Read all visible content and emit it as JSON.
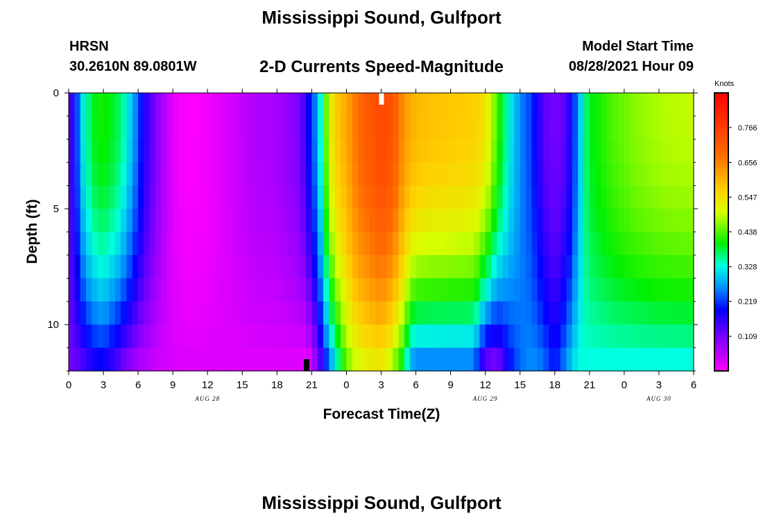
{
  "header": {
    "title_top": "Mississippi Sound, Gulfport",
    "station_id": "HRSN",
    "station_coords": "30.2610N  89.0801W",
    "model_start_label": "Model Start Time",
    "model_start_value": "08/28/2021 Hour 09",
    "title_bottom": "Mississippi Sound, Gulfport"
  },
  "chart_data": {
    "type": "heatmap",
    "title": "2-D Currents Speed-Magnitude",
    "xlabel": "Forecast Time(Z)",
    "ylabel": "Depth (ft)",
    "colorbar_label": "Knots",
    "colorbar_ticks": [
      "0.109",
      "0.219",
      "0.328",
      "0.438",
      "0.547",
      "0.656",
      "0.766"
    ],
    "colorbar_range": [
      0.0,
      0.875
    ],
    "x_tick_labels": [
      "0",
      "3",
      "6",
      "9",
      "12",
      "15",
      "18",
      "21",
      "0",
      "3",
      "6",
      "9",
      "12",
      "15",
      "18",
      "21",
      "0",
      "3",
      "6"
    ],
    "x_hours_range": [
      0,
      54
    ],
    "date_labels": [
      {
        "text": "AUG 28",
        "hour": 12
      },
      {
        "text": "AUG 29",
        "hour": 36
      },
      {
        "text": "AUG 30",
        "hour": 51
      }
    ],
    "y_tick_labels": [
      "0",
      "5",
      "10"
    ],
    "y_tick_values": [
      0,
      5,
      10
    ],
    "ylim": [
      0,
      12
    ],
    "y_inverted": true,
    "grid": false,
    "markers": [
      {
        "type": "white-bar",
        "hour": 27
      },
      {
        "type": "black-bar",
        "hour": 20.5
      }
    ],
    "time_profile_surface": [
      [
        0,
        0.15
      ],
      [
        0.5,
        0.2
      ],
      [
        1,
        0.33
      ],
      [
        1.5,
        0.4
      ],
      [
        2.5,
        0.47
      ],
      [
        3.5,
        0.46
      ],
      [
        4.5,
        0.42
      ],
      [
        5.5,
        0.33
      ],
      [
        6.5,
        0.2
      ],
      [
        7.5,
        0.12
      ],
      [
        8.5,
        0.05
      ],
      [
        9.5,
        0.01
      ],
      [
        10.5,
        0.0
      ],
      [
        12,
        0.01
      ],
      [
        14,
        0.04
      ],
      [
        16,
        0.07
      ],
      [
        18,
        0.08
      ],
      [
        20,
        0.12
      ],
      [
        21,
        0.25
      ],
      [
        21.5,
        0.32
      ],
      [
        22,
        0.45
      ],
      [
        22.5,
        0.58
      ],
      [
        23,
        0.65
      ],
      [
        24,
        0.7
      ],
      [
        25,
        0.78
      ],
      [
        26,
        0.82
      ],
      [
        27,
        0.85
      ],
      [
        28,
        0.83
      ],
      [
        29,
        0.72
      ],
      [
        30,
        0.68
      ],
      [
        31,
        0.67
      ],
      [
        33,
        0.66
      ],
      [
        35,
        0.65
      ],
      [
        36,
        0.62
      ],
      [
        37,
        0.5
      ],
      [
        38,
        0.38
      ],
      [
        39,
        0.3
      ],
      [
        40,
        0.25
      ],
      [
        41,
        0.15
      ],
      [
        42,
        0.12
      ],
      [
        43,
        0.15
      ],
      [
        44,
        0.3
      ],
      [
        44.5,
        0.4
      ],
      [
        45,
        0.45
      ],
      [
        47,
        0.5
      ],
      [
        49,
        0.53
      ],
      [
        51,
        0.55
      ],
      [
        54,
        0.56
      ]
    ],
    "time_profile_bottom": [
      [
        0,
        0.12
      ],
      [
        1,
        0.15
      ],
      [
        2,
        0.2
      ],
      [
        3,
        0.22
      ],
      [
        4,
        0.17
      ],
      [
        5,
        0.12
      ],
      [
        6,
        0.08
      ],
      [
        8,
        0.04
      ],
      [
        10,
        0.03
      ],
      [
        12,
        0.03
      ],
      [
        14,
        0.03
      ],
      [
        16,
        0.03
      ],
      [
        18,
        0.03
      ],
      [
        20,
        0.03
      ],
      [
        20.5,
        0.02
      ],
      [
        21,
        0.05
      ],
      [
        22,
        0.2
      ],
      [
        22.5,
        0.3
      ],
      [
        23,
        0.37
      ],
      [
        23.5,
        0.45
      ],
      [
        24,
        0.52
      ],
      [
        25,
        0.58
      ],
      [
        26,
        0.6
      ],
      [
        27,
        0.62
      ],
      [
        28,
        0.55
      ],
      [
        29,
        0.45
      ],
      [
        29.5,
        0.33
      ],
      [
        30,
        0.3
      ],
      [
        32,
        0.3
      ],
      [
        35,
        0.3
      ],
      [
        36,
        0.15
      ],
      [
        37,
        0.12
      ],
      [
        38,
        0.22
      ],
      [
        39,
        0.28
      ],
      [
        40,
        0.3
      ],
      [
        41,
        0.28
      ],
      [
        42,
        0.22
      ],
      [
        43,
        0.3
      ],
      [
        44,
        0.38
      ],
      [
        46,
        0.38
      ],
      [
        50,
        0.38
      ],
      [
        54,
        0.38
      ]
    ]
  }
}
